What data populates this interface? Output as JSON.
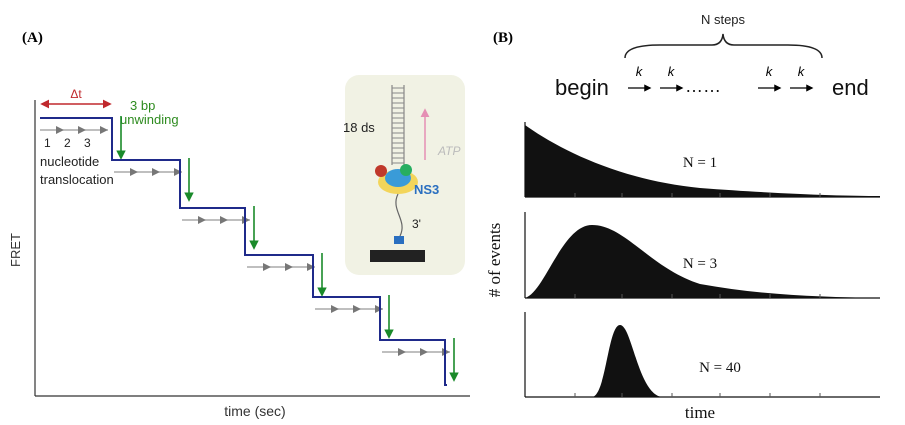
{
  "panel_a": {
    "label": "(A)",
    "delta_t": "Δt",
    "step_label": [
      "3 bp",
      "unwinding"
    ],
    "counts": [
      "1",
      "2",
      "3"
    ],
    "translocation_label": [
      "nucleotide",
      "translocation"
    ],
    "y_axis": "FRET",
    "x_axis": "time (sec)",
    "inset": {
      "dna": "18 ds",
      "atp": "ATP",
      "enzyme": "NS3",
      "end": "3'"
    }
  },
  "panel_b": {
    "label": "(B)",
    "scheme": {
      "title": "N steps",
      "begin": "begin",
      "rates": [
        "k",
        "k",
        "k",
        "k"
      ],
      "ellipsis": "……",
      "end": "end"
    },
    "panels": [
      "N = 1",
      "N = 3",
      "N = 40"
    ],
    "y_axis": "# of events",
    "x_axis": "time"
  }
}
